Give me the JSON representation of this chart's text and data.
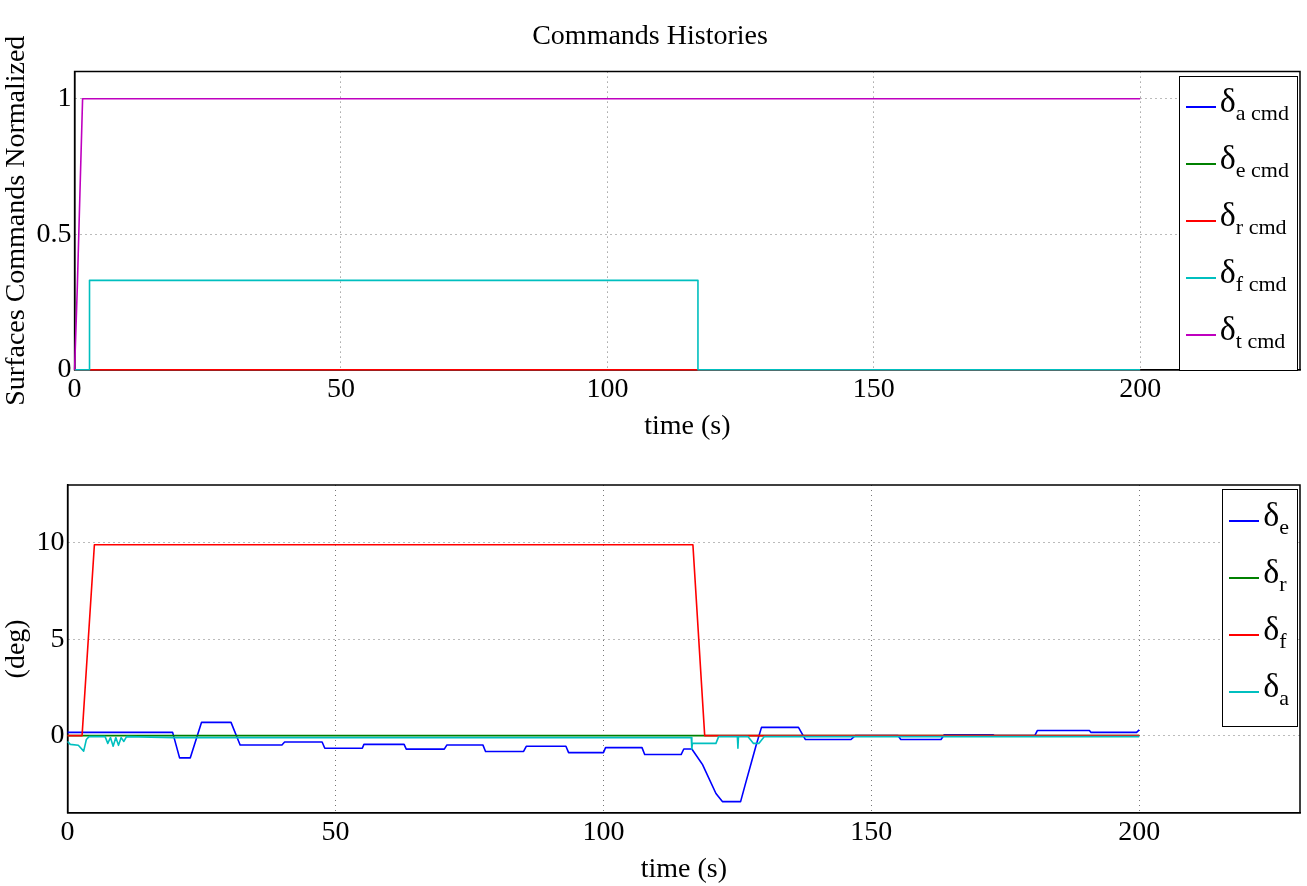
{
  "chart_data": [
    {
      "type": "line",
      "title": "Commands Histories",
      "xlabel": "time (s)",
      "ylabel": "Surfaces Commands Normalized",
      "xlim": [
        0,
        230
      ],
      "ylim": [
        0,
        1.1
      ],
      "xticks": [
        0,
        50,
        100,
        150,
        200
      ],
      "yticks": [
        0,
        0.5,
        1
      ],
      "grid": true,
      "legend": "top right",
      "marker": "none",
      "line_style": "solid",
      "series": [
        {
          "name": "δ$_{a cmd}$",
          "color": "#0000ff"
        },
        {
          "name": "δ$_{e cmd}$",
          "color": "#008000"
        },
        {
          "name": "δ$_{r cmd}$",
          "color": "#ff0000",
          "x": [
            0,
            200
          ],
          "values": [
            0,
            0
          ]
        },
        {
          "name": "δ$_{f cmd}$",
          "color": "#00bfbf",
          "x": [
            0,
            2.8,
            2.8,
            117,
            117,
            200
          ],
          "values": [
            0,
            0,
            0.33,
            0.33,
            0,
            0
          ]
        },
        {
          "name": "δ$_{t cmd}$",
          "color": "#bf00bf",
          "x": [
            0,
            0.5,
            1,
            1.5,
            200
          ],
          "values": [
            0,
            0.3,
            0.65,
            1,
            1
          ]
        }
      ]
    },
    {
      "type": "line",
      "xlabel": "time (s)",
      "ylabel": "(deg)",
      "xlim": [
        0,
        230
      ],
      "ylim": [
        -4,
        13
      ],
      "xticks": [
        0,
        50,
        100,
        150,
        200
      ],
      "yticks": [
        0,
        5,
        10
      ],
      "grid": true,
      "legend": "top right",
      "marker": "none",
      "line_style": "solid",
      "series": [
        {
          "name": "δ$_{e}$",
          "color": "#0000ff",
          "x": [
            0,
            19.6,
            20.9,
            22.9,
            25,
            30.5,
            32.2,
            40,
            40.5,
            47.5,
            48,
            55,
            55.3,
            62.8,
            63.2,
            70.3,
            70.8,
            77.5,
            78,
            85.1,
            85.6,
            93,
            93.5,
            100,
            100.4,
            107.2,
            107.7,
            114.5,
            115,
            116.5,
            118.5,
            121,
            122.2,
            125.6,
            126.5,
            128.5,
            129.5,
            136.4,
            137.7,
            146.2,
            147,
            155,
            155.5,
            163,
            163.6,
            172.7,
            173,
            180.5,
            181,
            190.7,
            191,
            199.5,
            200
          ],
          "values": [
            0.17,
            0.17,
            -1.15,
            -1.15,
            0.69,
            0.69,
            -0.48,
            -0.48,
            -0.33,
            -0.33,
            -0.65,
            -0.65,
            -0.45,
            -0.45,
            -0.7,
            -0.7,
            -0.48,
            -0.48,
            -0.82,
            -0.82,
            -0.55,
            -0.55,
            -0.88,
            -0.88,
            -0.62,
            -0.62,
            -0.98,
            -0.98,
            -0.69,
            -0.69,
            -1.5,
            -3,
            -3.42,
            -3.42,
            -2.5,
            -0.5,
            0.43,
            0.43,
            -0.2,
            -0.2,
            0,
            0,
            -0.2,
            -0.2,
            0.05,
            0.05,
            0,
            0,
            0.27,
            0.27,
            0.17,
            0.17,
            0.3
          ]
        },
        {
          "name": "δ$_{r}$",
          "color": "#008000",
          "x": [
            0,
            200
          ],
          "values": [
            0,
            0
          ]
        },
        {
          "name": "δ$_{f}$",
          "color": "#ff0000",
          "x": [
            0,
            2.7,
            5,
            116.7,
            118.9,
            200
          ],
          "values": [
            0,
            0,
            9.9,
            9.9,
            0,
            0
          ]
        },
        {
          "name": "δ$_{a}$",
          "color": "#00bfbf",
          "x": [
            0,
            0.5,
            2,
            3,
            3.5,
            4,
            7,
            7.5,
            8,
            8.5,
            9,
            9.5,
            10,
            10.5,
            11,
            20,
            116.4,
            116.5,
            116.6,
            121,
            121.5,
            125,
            125.1,
            125.2,
            127,
            128,
            129,
            130,
            131,
            200
          ],
          "values": [
            -0.3,
            -0.45,
            -0.5,
            -0.8,
            -0.2,
            -0.05,
            -0.05,
            -0.4,
            -0.1,
            -0.55,
            -0.1,
            -0.5,
            -0.1,
            -0.3,
            -0.05,
            -0.1,
            -0.1,
            -0.7,
            -0.4,
            -0.4,
            -0.05,
            -0.05,
            -0.65,
            -0.05,
            -0.05,
            -0.4,
            -0.4,
            -0.05,
            -0.05,
            -0.05
          ]
        }
      ]
    }
  ]
}
